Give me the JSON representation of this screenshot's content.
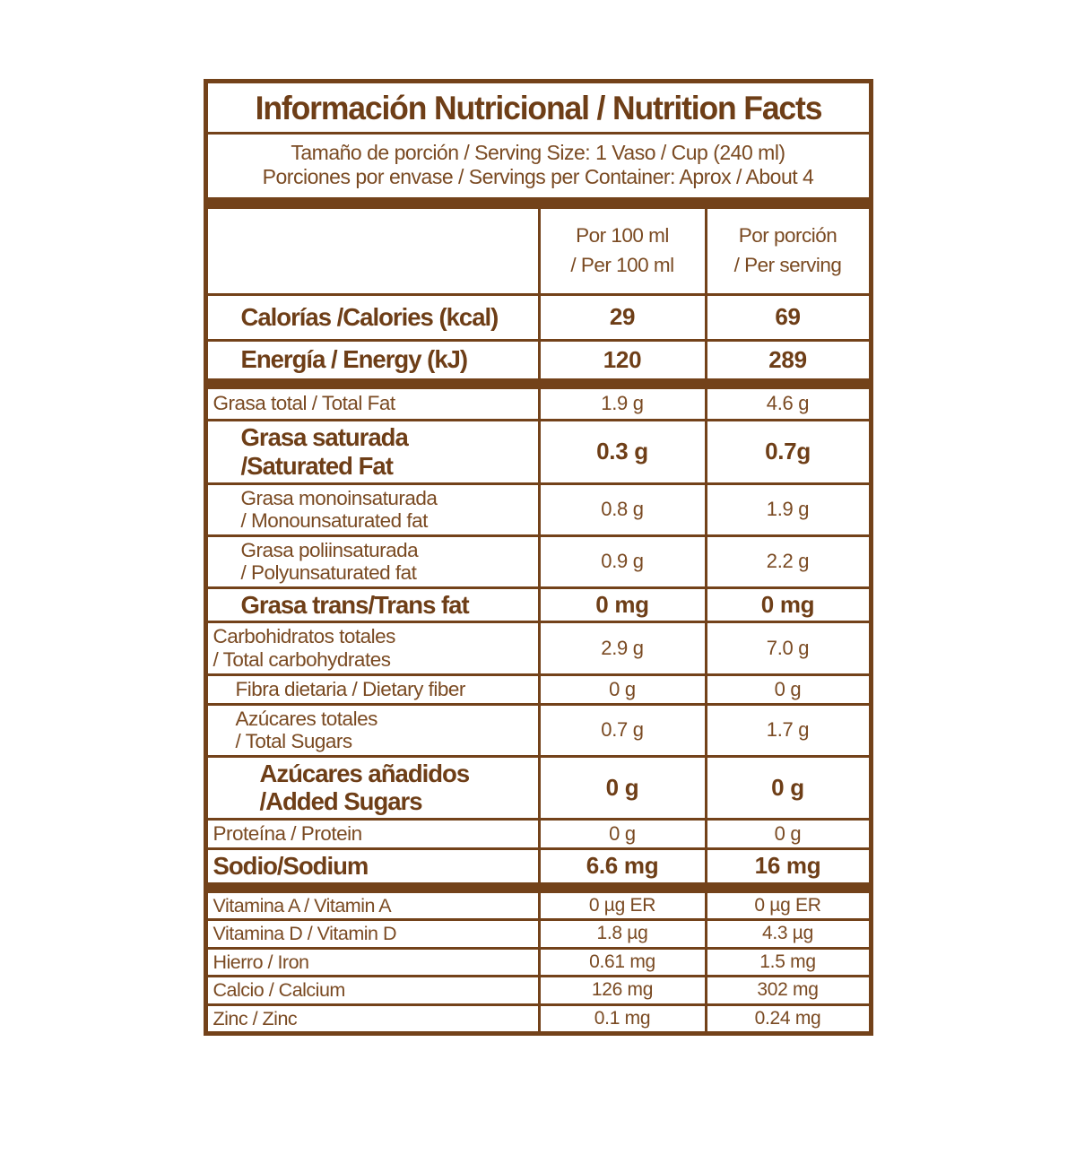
{
  "accent_color": "#73421a",
  "bold_text_color": "#6e3e17",
  "regular_text_color": "#7a4a22",
  "label": {
    "title": "Información Nutricional / Nutrition Facts",
    "serving_size": "Tamaño de porción / Serving Size: 1 Vaso / Cup (240 ml)",
    "servings_per_container": "Porciones por envase / Servings per Container: Aprox / About 4",
    "column_headers": {
      "per_100ml": {
        "line1": "Por 100 ml",
        "line2": "/ Per 100 ml"
      },
      "per_serving": {
        "line1": "Por porción",
        "line2": "/ Per serving"
      }
    },
    "rows": {
      "calories": {
        "l1": "Calorías /Calories (kcal)",
        "per_100ml": "29",
        "per_serving": "69"
      },
      "energy": {
        "l1": "Energía / Energy (kJ)",
        "per_100ml": "120",
        "per_serving": "289"
      },
      "total_fat": {
        "l1": "Grasa total / Total Fat",
        "per_100ml": "1.9 g",
        "per_serving": "4.6 g"
      },
      "saturated_fat": {
        "l1": "Grasa saturada",
        "l2": "/Saturated Fat",
        "per_100ml": "0.3 g",
        "per_serving": "0.7g"
      },
      "monounsaturated_fat": {
        "l1": "Grasa monoinsaturada",
        "l2": "/ Monounsaturated fat",
        "per_100ml": "0.8 g",
        "per_serving": "1.9 g"
      },
      "polyunsaturated_fat": {
        "l1": "Grasa poliinsaturada",
        "l2": "/ Polyunsaturated fat",
        "per_100ml": "0.9 g",
        "per_serving": "2.2 g"
      },
      "trans_fat": {
        "l1": "Grasa trans/Trans fat",
        "per_100ml": "0 mg",
        "per_serving": "0 mg"
      },
      "total_carbohydrates": {
        "l1": "Carbohidratos totales",
        "l2": "/ Total carbohydrates",
        "per_100ml": "2.9 g",
        "per_serving": "7.0 g"
      },
      "dietary_fiber": {
        "l1": "Fibra dietaria / Dietary fiber",
        "per_100ml": "0 g",
        "per_serving": "0 g"
      },
      "total_sugars": {
        "l1": "Azúcares totales",
        "l2": "/ Total Sugars",
        "per_100ml": "0.7 g",
        "per_serving": "1.7 g"
      },
      "added_sugars": {
        "l1": "Azúcares añadidos",
        "l2": "/Added Sugars",
        "per_100ml": "0 g",
        "per_serving": "0 g"
      },
      "protein": {
        "l1": "Proteína / Protein",
        "per_100ml": "0 g",
        "per_serving": "0 g"
      },
      "sodium": {
        "l1": "Sodio/Sodium",
        "per_100ml": "6.6 mg",
        "per_serving": "16 mg"
      },
      "vitamin_a": {
        "l1": "Vitamina A / Vitamin A",
        "per_100ml": "0 µg ER",
        "per_serving": "0 µg ER"
      },
      "vitamin_d": {
        "l1": "Vitamina D / Vitamin D",
        "per_100ml": "1.8 µg",
        "per_serving": "4.3 µg"
      },
      "iron": {
        "l1": "Hierro / Iron",
        "per_100ml": "0.61 mg",
        "per_serving": "1.5 mg"
      },
      "calcium": {
        "l1": "Calcio / Calcium",
        "per_100ml": "126 mg",
        "per_serving": "302 mg"
      },
      "zinc": {
        "l1": "Zinc / Zinc",
        "per_100ml": "0.1 mg",
        "per_serving": "0.24 mg"
      }
    }
  }
}
